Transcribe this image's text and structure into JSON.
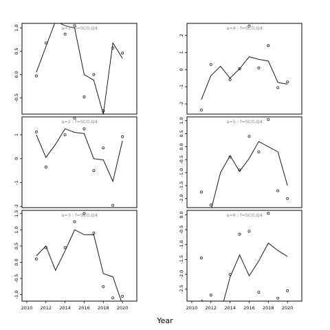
{
  "xlabel": "Year",
  "xlim": [
    2009.5,
    2021.5
  ],
  "xticks": [
    2010,
    2012,
    2014,
    2016,
    2018,
    2020
  ],
  "chart_data": [
    {
      "type": "line",
      "title": "a=1 : f=SCO.Q4",
      "ylim": [
        -0.85,
        1.1
      ],
      "yticks": [
        -0.5,
        0.0,
        0.5,
        1.0
      ],
      "ytick_labels": [
        "-0.5",
        "0.0",
        "0.5",
        "1.0"
      ],
      "x": [
        2011,
        2012,
        2013,
        2014,
        2015,
        2016,
        2017,
        2018,
        2019,
        2020
      ],
      "line": [
        0.05,
        0.6,
        1.15,
        1.05,
        1.0,
        0.0,
        -0.12,
        -0.85,
        0.68,
        0.35
      ],
      "points": [
        -0.03,
        0.68,
        1.28,
        0.87,
        1.05,
        -0.48,
        0.0,
        -0.78,
        0.57,
        0.46
      ],
      "grid": false,
      "legend": "none"
    },
    {
      "type": "line",
      "title": "a=4 : f=SCO.Q4",
      "ylim": [
        -2.6,
        2.7
      ],
      "yticks": [
        -2,
        -1,
        0,
        1,
        2
      ],
      "ytick_labels": [
        "-2",
        "-1",
        "0",
        "1",
        "2"
      ],
      "x": [
        2011,
        2012,
        2013,
        2014,
        2015,
        2016,
        2017,
        2018,
        2019,
        2020
      ],
      "line": [
        -1.75,
        -0.35,
        0.2,
        -0.5,
        0.05,
        0.75,
        0.6,
        0.5,
        -0.75,
        -0.85
      ],
      "points": [
        -2.35,
        0.3,
        null,
        -0.58,
        0.05,
        2.55,
        0.1,
        1.4,
        -1.05,
        -0.72
      ],
      "grid": false,
      "legend": "none"
    },
    {
      "type": "line",
      "title": "a=2 : f=SCO.Q4",
      "ylim": [
        -2.05,
        1.75
      ],
      "yticks": [
        -2,
        -1,
        0,
        1
      ],
      "ytick_labels": [
        "-2",
        "-1",
        "0",
        "1"
      ],
      "x": [
        2011,
        2012,
        2013,
        2014,
        2015,
        2016,
        2017,
        2018,
        2019,
        2020
      ],
      "line": [
        1.0,
        0.05,
        0.6,
        1.25,
        1.1,
        1.05,
        0.0,
        -0.05,
        -0.95,
        0.75
      ],
      "points": [
        1.12,
        -0.35,
        null,
        1.0,
        1.7,
        1.25,
        -0.5,
        0.45,
        -1.95,
        0.92
      ],
      "grid": false,
      "legend": "none"
    },
    {
      "type": "line",
      "title": "a=5 : f=SCO.Q4",
      "ylim": [
        -2.35,
        1.15
      ],
      "yticks": [
        -2.0,
        -1.5,
        -1.0,
        -0.5,
        0.0,
        0.5,
        1.0
      ],
      "ytick_labels": [
        "-2.0",
        "-1.5",
        "-1.0",
        "-0.5",
        "0.0",
        "0.5",
        "1.0"
      ],
      "x": [
        2011,
        2012,
        2013,
        2014,
        2015,
        2016,
        2017,
        2018,
        2019,
        2020
      ],
      "line": [
        -2.55,
        -2.45,
        -1.0,
        -0.35,
        -0.95,
        -0.45,
        0.2,
        0.0,
        -0.2,
        -1.5
      ],
      "points": [
        -1.75,
        -2.25,
        null,
        -0.4,
        -0.9,
        0.4,
        -0.2,
        1.05,
        -1.7,
        -2.0
      ],
      "grid": false,
      "legend": "none"
    },
    {
      "type": "line",
      "title": "a=3 : f=SCO.Q4",
      "ylim": [
        -1.2,
        1.6
      ],
      "yticks": [
        -1.0,
        -0.5,
        0.0,
        0.5,
        1.0,
        1.5
      ],
      "ytick_labels": [
        "-1.0",
        "-0.5",
        "0.0",
        "0.5",
        "1.0",
        "1.5"
      ],
      "x": [
        2011,
        2012,
        2013,
        2014,
        2015,
        2016,
        2017,
        2018,
        2019,
        2020
      ],
      "line": [
        0.2,
        0.5,
        -0.25,
        0.35,
        1.0,
        0.85,
        0.85,
        -0.35,
        -0.45,
        -1.3
      ],
      "points": [
        0.1,
        0.45,
        null,
        0.45,
        1.25,
        1.5,
        0.9,
        -0.75,
        -1.1,
        -1.05
      ],
      "grid": false,
      "legend": "none"
    },
    {
      "type": "line",
      "title": "a=6 : f=SCO.Q4",
      "ylim": [
        -2.9,
        0.15
      ],
      "yticks": [
        -2.5,
        -2.0,
        -1.5,
        -1.0,
        -0.5,
        0.0
      ],
      "ytick_labels": [
        "-2.5",
        "-2.0",
        "-1.5",
        "-1.0",
        "-0.5",
        "0.0"
      ],
      "x": [
        2011,
        2012,
        2013,
        2014,
        2015,
        2016,
        2017,
        2018,
        2019,
        2020
      ],
      "line": [
        -2.85,
        -3.2,
        -3.3,
        -2.1,
        -1.35,
        -2.05,
        -1.55,
        -0.95,
        -1.2,
        -1.4
      ],
      "points": [
        -1.45,
        -2.7,
        null,
        -2.0,
        -0.65,
        -0.55,
        -2.6,
        0.05,
        -2.8,
        -2.55
      ],
      "grid": false,
      "legend": "none"
    }
  ]
}
